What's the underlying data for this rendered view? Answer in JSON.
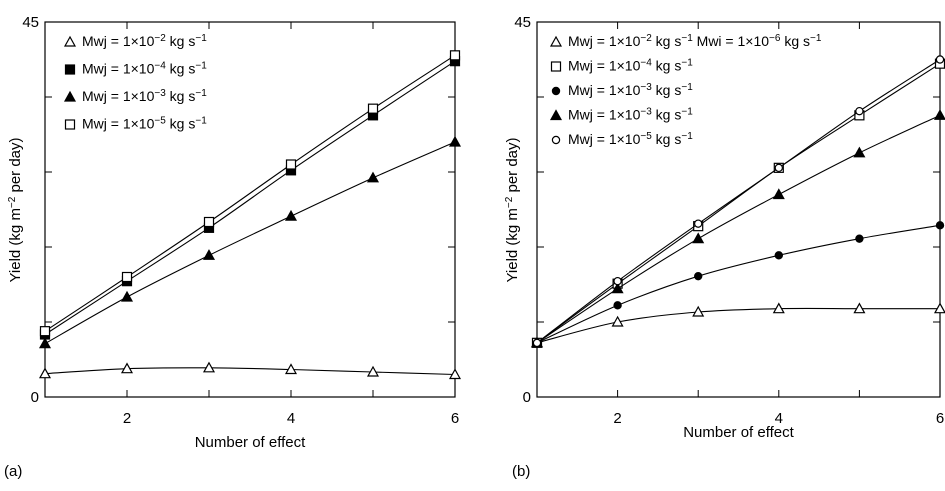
{
  "figure": {
    "panel_a_label": "(a)",
    "panel_b_label": "(b)"
  },
  "chart_data": [
    {
      "panel": "(a)",
      "type": "line",
      "xlabel": "Number of effect",
      "ylabel": "Yield  (kg m⁻² per day)",
      "xlim": [
        1,
        6
      ],
      "ylim": [
        0,
        45
      ],
      "x_ticks": [
        "2",
        "4",
        "6"
      ],
      "y_ticks": [
        "0",
        "45"
      ],
      "grid": false,
      "legend_position": "top-left",
      "series": [
        {
          "name": "Mwj = 1×10⁻² kg s⁻¹",
          "marker": "triangle-open",
          "x": [
            1,
            2,
            3,
            4,
            5,
            6
          ],
          "y": [
            2.8,
            3.4,
            3.5,
            3.3,
            3.0,
            2.7
          ]
        },
        {
          "name": "Mwj = 1×10⁻⁴ kg s⁻¹",
          "marker": "square-filled",
          "x": [
            1,
            2,
            3,
            4,
            5,
            6
          ],
          "y": [
            7.5,
            13.9,
            20.3,
            27.2,
            33.8,
            40.3
          ]
        },
        {
          "name": "Mwj = 1×10⁻³ kg s⁻¹",
          "marker": "triangle-filled",
          "x": [
            1,
            2,
            3,
            4,
            5,
            6
          ],
          "y": [
            6.4,
            12.0,
            17.0,
            21.7,
            26.3,
            30.6
          ]
        },
        {
          "name": "Mwj = 1×10⁻⁵ kg s⁻¹",
          "marker": "square-open",
          "x": [
            1,
            2,
            3,
            4,
            5,
            6
          ],
          "y": [
            7.9,
            14.4,
            21.0,
            27.9,
            34.6,
            41.0
          ]
        }
      ]
    },
    {
      "panel": "(b)",
      "type": "line",
      "xlabel": "Number of effect",
      "ylabel": "Yield  (kg m⁻² per day)",
      "xlim": [
        1,
        6
      ],
      "ylim": [
        0,
        45
      ],
      "x_ticks": [
        "2",
        "4",
        "6"
      ],
      "y_ticks": [
        "0",
        "45"
      ],
      "grid": false,
      "legend_position": "top-left",
      "legend_title": "Mwi = 1×10⁻⁶ kg s⁻¹",
      "series": [
        {
          "name": "Mwj = 1×10⁻² kg s⁻¹",
          "marker": "triangle-open",
          "x": [
            1,
            2,
            3,
            4,
            5,
            6
          ],
          "y": [
            6.5,
            9.0,
            10.2,
            10.6,
            10.6,
            10.6
          ]
        },
        {
          "name": "Mwj = 1×10⁻⁴ kg s⁻¹",
          "marker": "square-open",
          "x": [
            1,
            2,
            3,
            4,
            5,
            6
          ],
          "y": [
            6.5,
            13.6,
            20.5,
            27.5,
            33.8,
            40.0
          ]
        },
        {
          "name": "Mwj = 1×10⁻³ kg s⁻¹",
          "marker": "circle-filled",
          "x": [
            1,
            2,
            3,
            4,
            5,
            6
          ],
          "y": [
            6.5,
            11.0,
            14.5,
            17.0,
            19.0,
            20.6
          ]
        },
        {
          "name": "Mwj = 1×10⁻³ kg s⁻¹",
          "marker": "triangle-filled",
          "x": [
            1,
            2,
            3,
            4,
            5,
            6
          ],
          "y": [
            6.5,
            13.0,
            19.0,
            24.3,
            29.3,
            33.8
          ]
        },
        {
          "name": "Mwj = 1×10⁻⁵ kg s⁻¹",
          "marker": "circle-open",
          "x": [
            1,
            2,
            3,
            4,
            5,
            6
          ],
          "y": [
            6.5,
            13.9,
            20.8,
            27.5,
            34.3,
            40.5
          ]
        }
      ]
    }
  ]
}
